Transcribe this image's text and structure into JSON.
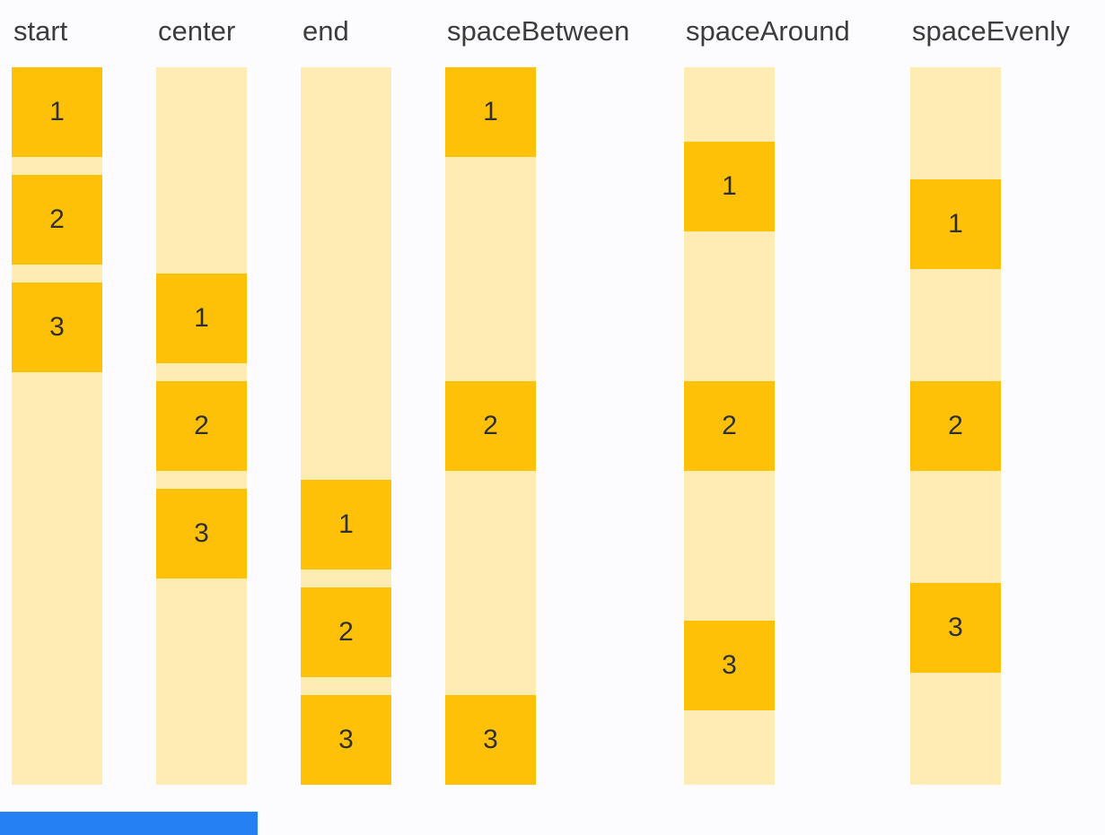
{
  "page": {
    "background_color": "#FCFCFE"
  },
  "palette": {
    "item_box_color": "#FFC107",
    "track_color": "#FFECB3",
    "label_text_color": "#3C3C3C",
    "digit_text_color": "#303030",
    "bottom_bar_color": "#2581F3"
  },
  "columns": [
    {
      "label": "start",
      "justify": "start",
      "items": [
        "1",
        "2",
        "3"
      ]
    },
    {
      "label": "center",
      "justify": "center",
      "items": [
        "1",
        "2",
        "3"
      ]
    },
    {
      "label": "end",
      "justify": "end",
      "items": [
        "1",
        "2",
        "3"
      ]
    },
    {
      "label": "spaceBetween",
      "justify": "spaceBetween",
      "items": [
        "1",
        "2",
        "3"
      ]
    },
    {
      "label": "spaceAround",
      "justify": "spaceAround",
      "items": [
        "1",
        "2",
        "3"
      ]
    },
    {
      "label": "spaceEvenly",
      "justify": "spaceEvenly",
      "items": [
        "1",
        "2",
        "3"
      ]
    }
  ],
  "bottom_bar": {
    "visible": true
  }
}
